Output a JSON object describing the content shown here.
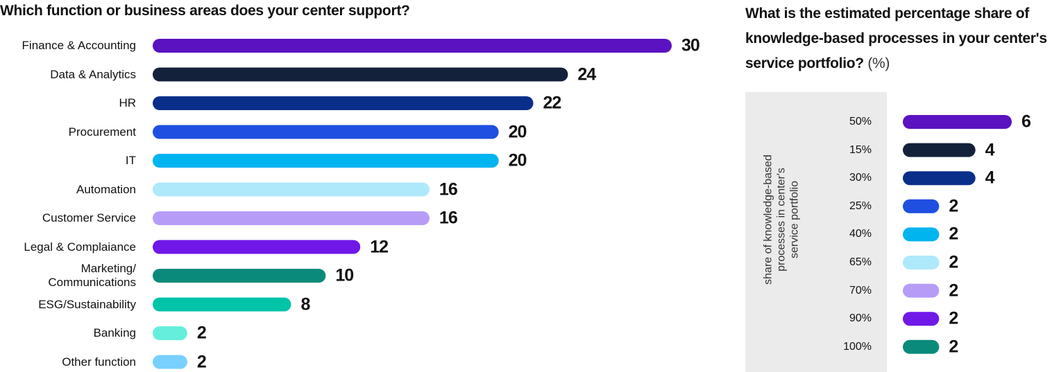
{
  "chart_data": [
    {
      "type": "hbar",
      "title": "Which function or business areas does your center support?",
      "categories": [
        "Finance & Accounting",
        "Data & Analytics",
        "HR",
        "Procurement",
        "IT",
        "Automation",
        "Customer Service",
        "Legal & Complaiance",
        "Marketing/ Communications",
        "ESG/Sustainability",
        "Banking",
        "Other function"
      ],
      "values": [
        30,
        24,
        22,
        20,
        20,
        16,
        16,
        12,
        10,
        8,
        2,
        2
      ],
      "colors": [
        "#5b12c0",
        "#13213a",
        "#0a2f8a",
        "#1f4fe0",
        "#00b4f0",
        "#aee9fb",
        "#b69cf7",
        "#6f18e8",
        "#0a8a7a",
        "#00c3a8",
        "#66eedd",
        "#78d0ff"
      ]
    },
    {
      "type": "hbar",
      "title": "What is the estimated percentage share of knowledge-based processes in your center's service portfolio?",
      "title_unit": "(%)",
      "ylabel": "share of knowledge-based processes in center's service portfolio",
      "categories": [
        "50%",
        "15%",
        "30%",
        "25%",
        "40%",
        "65%",
        "70%",
        "90%",
        "100%"
      ],
      "values": [
        6,
        4,
        4,
        2,
        2,
        2,
        2,
        2,
        2
      ],
      "colors": [
        "#5b12c0",
        "#13213a",
        "#0a2f8a",
        "#1f4fe0",
        "#00b4f0",
        "#aee9fb",
        "#b69cf7",
        "#6f18e8",
        "#0a8a7a"
      ]
    }
  ]
}
